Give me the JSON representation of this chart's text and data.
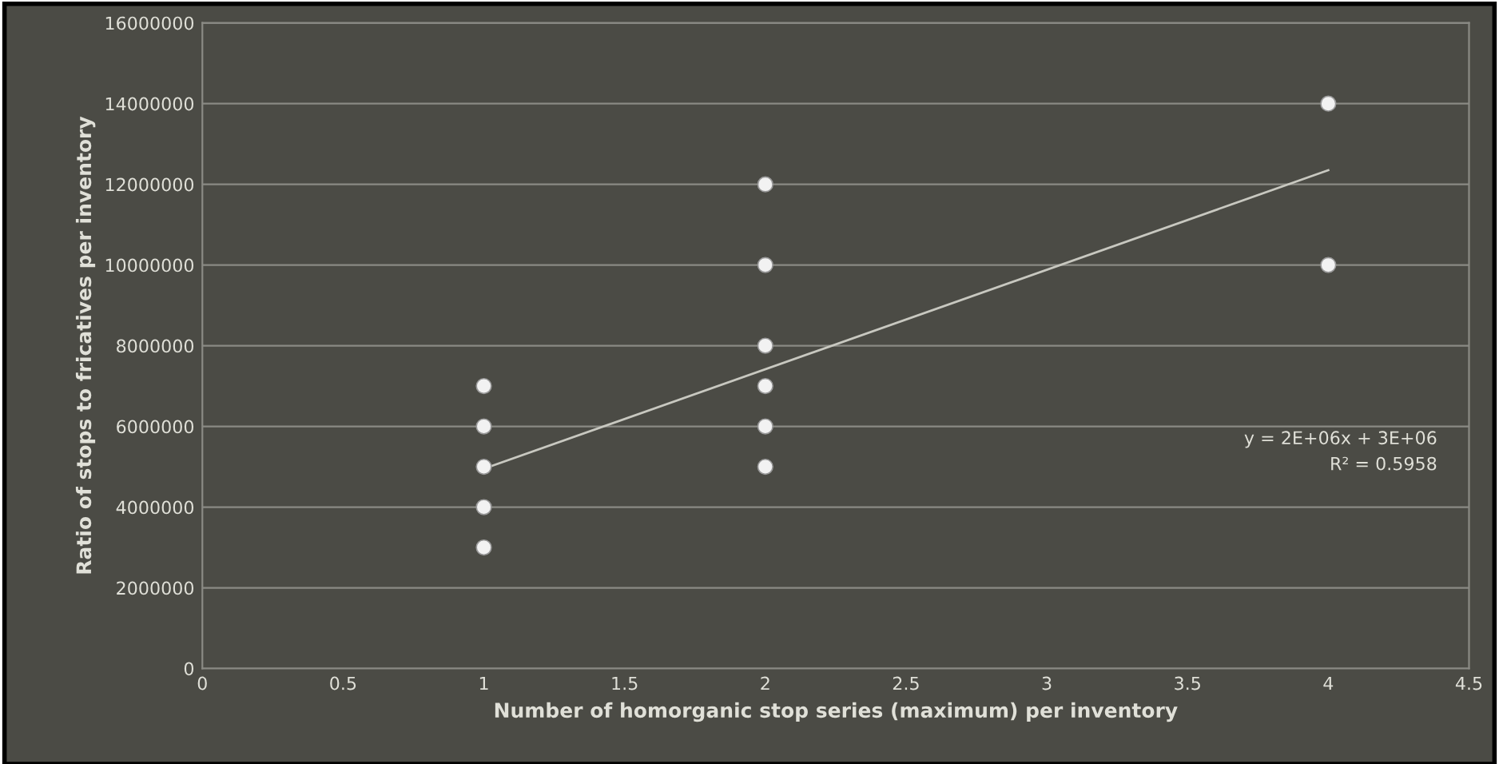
{
  "chart_data": {
    "type": "scatter",
    "xlabel": "Number of homorganic stop series (maximum) per inventory",
    "ylabel": "Ratio of stops to fricatives per inventory",
    "series": [
      {
        "color": "#f2f2f2",
        "marker": "circle",
        "x": [
          1,
          1,
          1,
          1,
          1,
          2,
          2,
          2,
          2,
          2,
          2,
          4,
          4
        ],
        "values": [
          3000000,
          4000000,
          5000000,
          6000000,
          7000000,
          5000000,
          6000000,
          7000000,
          8000000,
          10000000,
          12000000,
          10000000,
          14000000
        ]
      },
      {
        "type": "line",
        "color": "#c8c8c0",
        "marker": "none",
        "x": [
          1,
          4
        ],
        "values": [
          4950000,
          12350000
        ]
      }
    ],
    "xlim": [
      0,
      4.5
    ],
    "xticks": [
      0,
      0.5,
      1,
      1.5,
      2,
      2.5,
      3,
      3.5,
      4,
      4.5
    ],
    "ylim": [
      0,
      16000000
    ],
    "yticks": [
      0,
      2000000,
      4000000,
      6000000,
      8000000,
      10000000,
      12000000,
      14000000,
      16000000
    ],
    "grid": "y",
    "legend": false,
    "annotations": [
      "y = 2E+06x + 3E+06",
      "R² = 0.5958"
    ]
  }
}
